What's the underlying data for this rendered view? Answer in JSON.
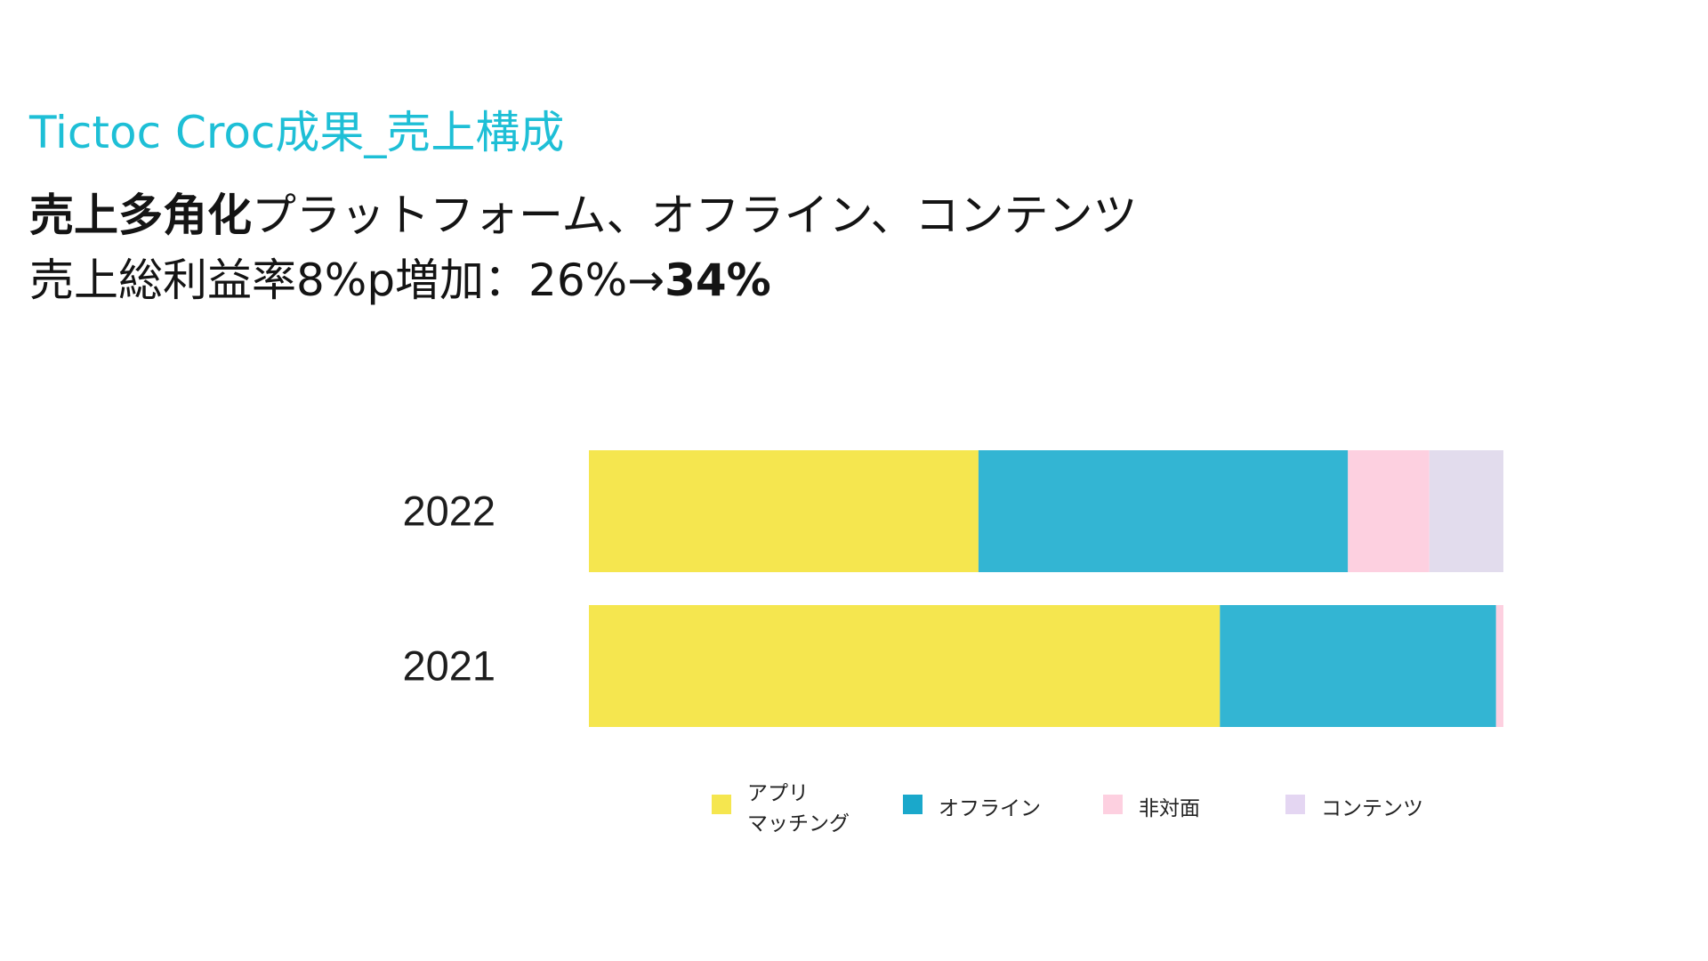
{
  "header": {
    "title": "Tictoc Croc成果_売上構成"
  },
  "headline": {
    "line1_bold": "売上多角化",
    "line1_rest": "プラットフォーム、オフライン、コンテンツ",
    "line2_text": "売上総利益率8%p増加：26%→",
    "line2_bold": "34%"
  },
  "chart_data": {
    "type": "bar",
    "orientation": "horizontal",
    "stacked": true,
    "normalized": true,
    "categories": [
      "2022",
      "2021"
    ],
    "series": [
      {
        "name": "アプリ\nマッチング",
        "color": "#f5e64f",
        "values": [
          42.6,
          69.0
        ]
      },
      {
        "name": "オフライン",
        "color": "#33b5d3",
        "values": [
          40.4,
          30.2
        ]
      },
      {
        "name": "非対面",
        "color": "#fdd0e0",
        "values": [
          8.9,
          0.8
        ]
      },
      {
        "name": "コンテンツ",
        "color": "#e2dced",
        "values": [
          8.1,
          0.0
        ]
      }
    ],
    "xlim": [
      0,
      100
    ],
    "grid": false,
    "legend_position": "bottom"
  },
  "legend_colors": {
    "app": "#f5e64f",
    "offline": "#1aa8cb",
    "nonface": "#fdd0e0",
    "contents": "#e4d6f2"
  }
}
